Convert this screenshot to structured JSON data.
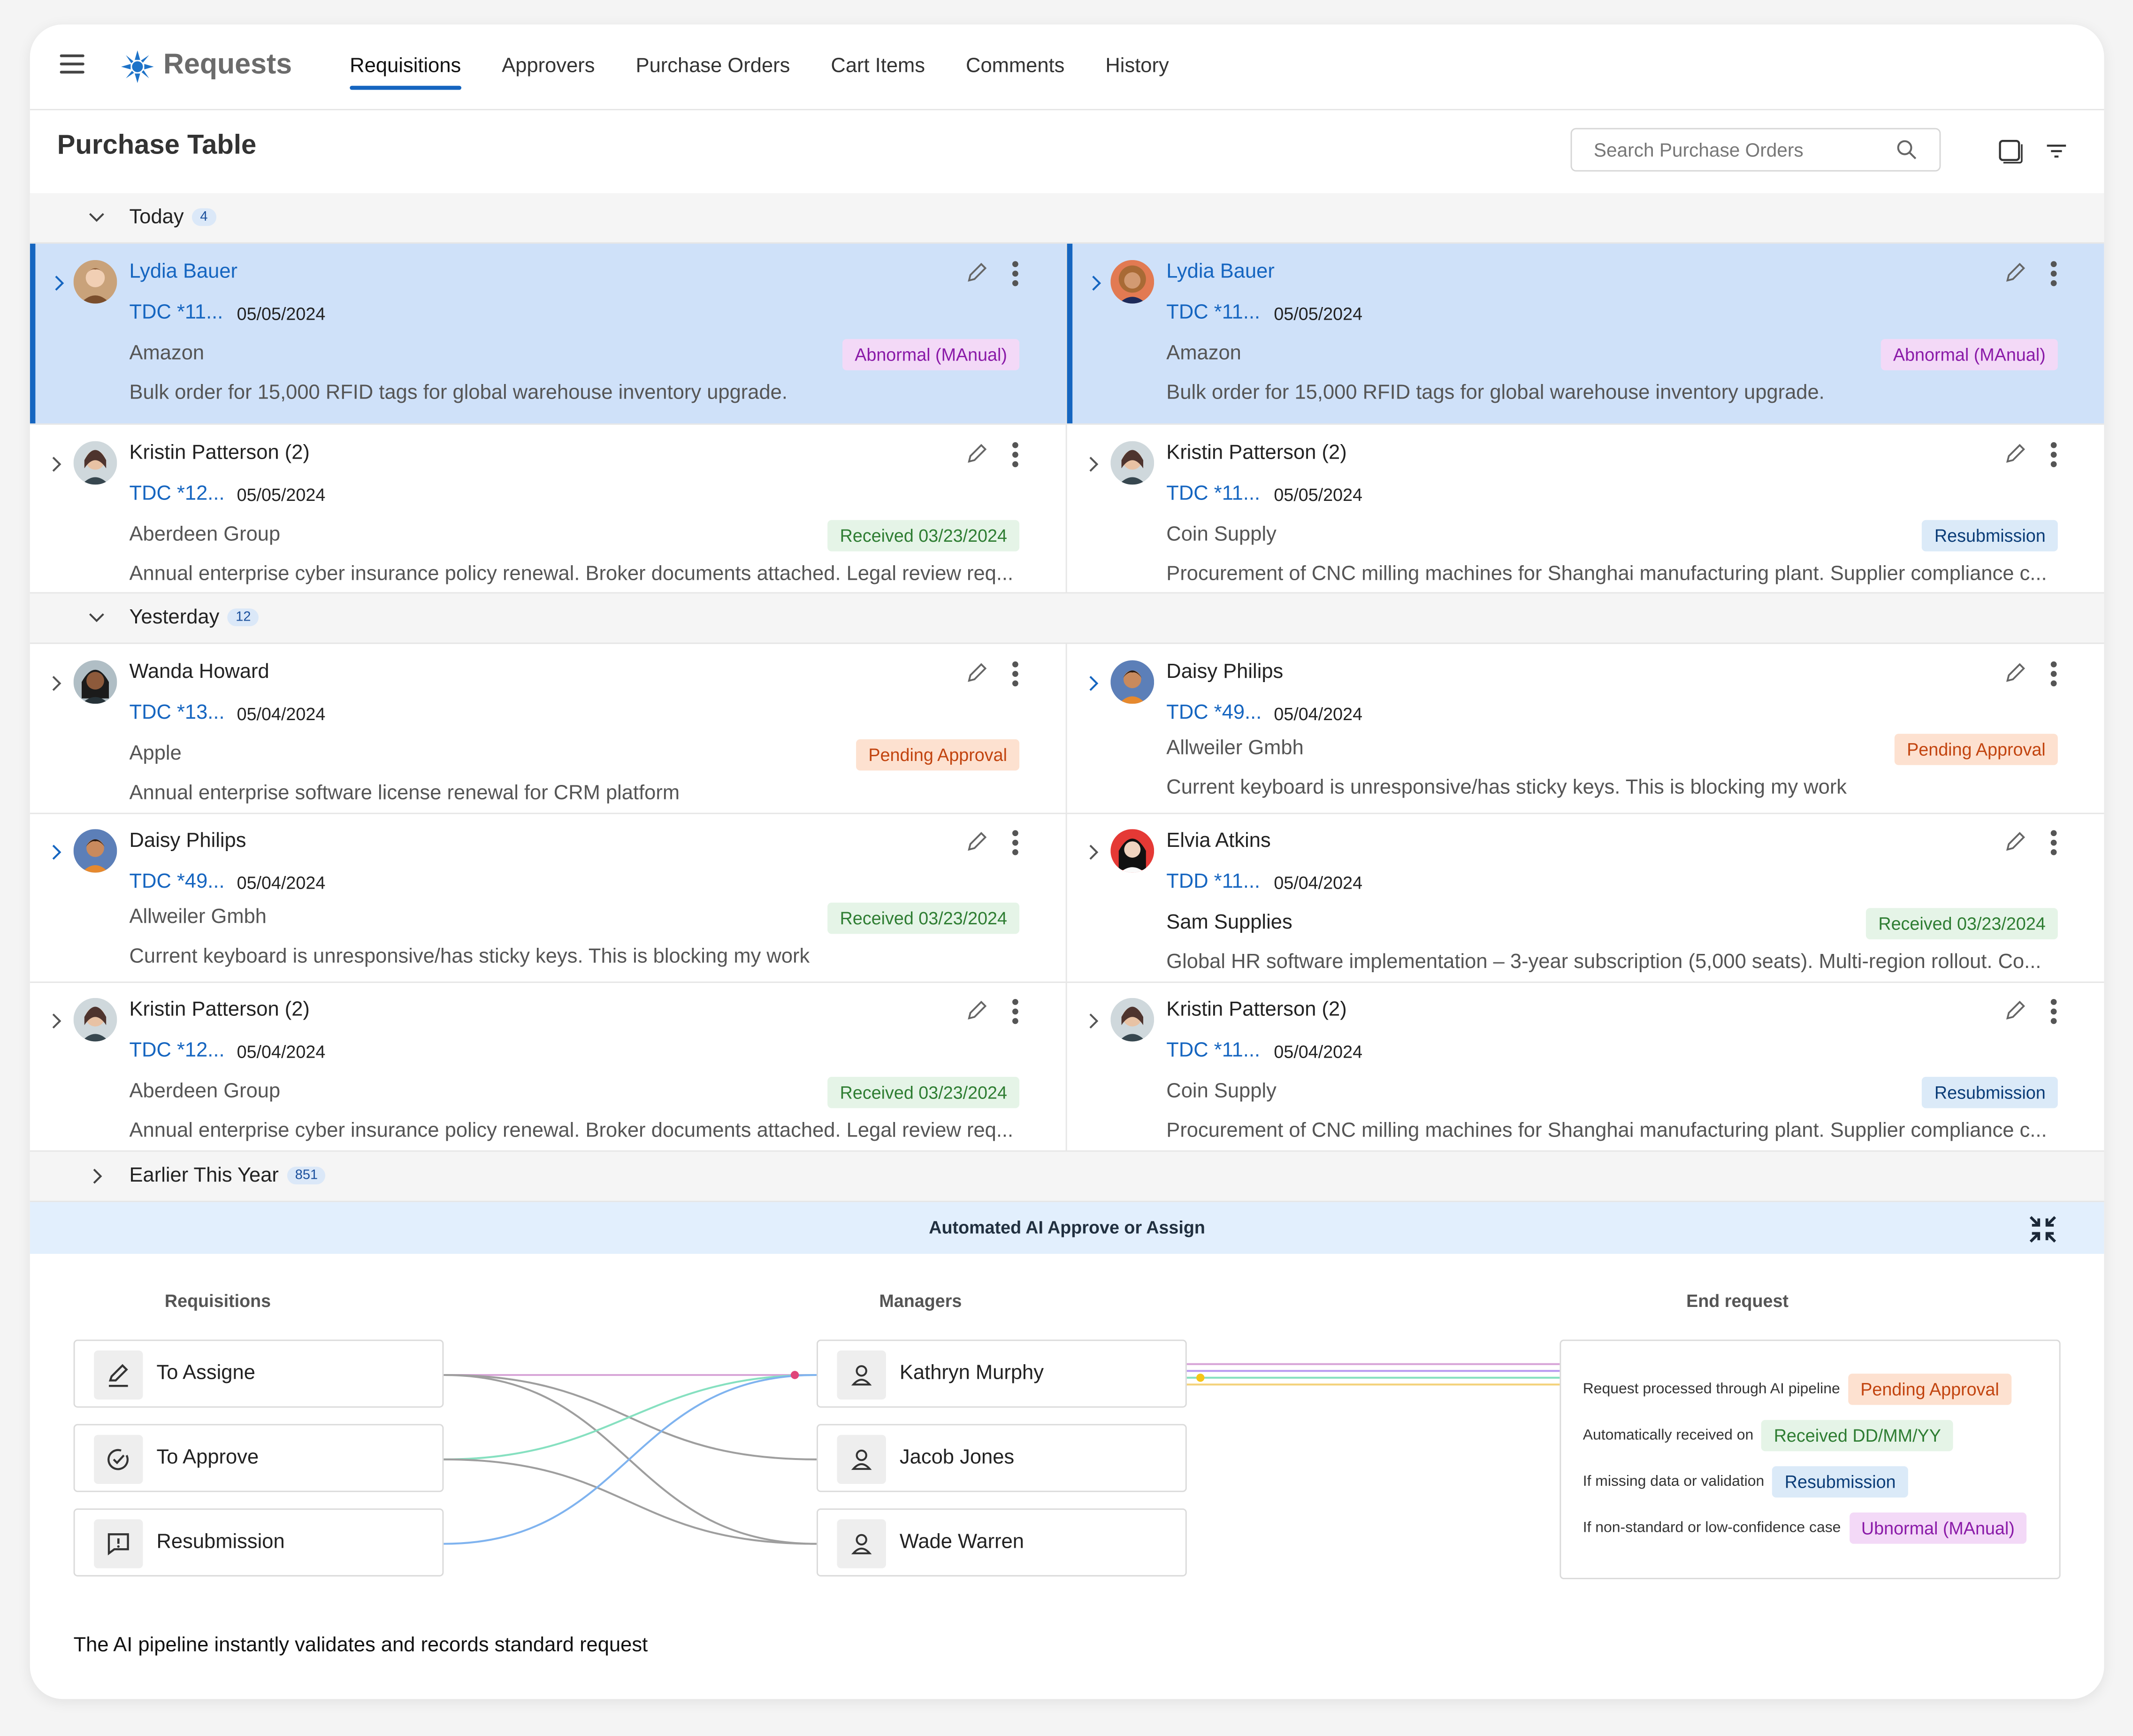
{
  "app": {
    "brand": "Requests"
  },
  "tabs": [
    "Requisitions",
    "Approvers",
    "Purchase Orders",
    "Cart Items",
    "Comments",
    "History"
  ],
  "header": {
    "title": "Purchase Table",
    "search_placeholder": "Search Purchase Orders"
  },
  "groups": {
    "today": {
      "label": "Today",
      "count": "4"
    },
    "yesterday": {
      "label": "Yesterday",
      "count": "12"
    },
    "earlier": {
      "label": "Earlier This Year",
      "count": "851"
    }
  },
  "rows": [
    [
      {
        "name": "Lydia Bauer",
        "code": "TDC *11...",
        "date": "05/05/2024",
        "vendor": "Amazon",
        "badge": "Abnormal (MAnual)",
        "desc": "Bulk order for 15,000 RFID tags for global warehouse inventory upgrade."
      },
      {
        "name": "Lydia Bauer",
        "code": "TDC *11...",
        "date": "05/05/2024",
        "vendor": "Amazon",
        "badge": "Abnormal (MAnual)",
        "desc": "Bulk order for 15,000 RFID tags for global warehouse inventory upgrade."
      }
    ],
    [
      {
        "name": "Kristin Patterson (2)",
        "code": "TDC *12...",
        "date": "05/05/2024",
        "vendor": "Aberdeen Group",
        "badge": "Received 03/23/2024",
        "desc": "Annual enterprise cyber insurance policy renewal. Broker documents attached. Legal review req..."
      },
      {
        "name": "Kristin Patterson (2)",
        "code": "TDC *11...",
        "date": "05/05/2024",
        "vendor": "Coin Supply",
        "badge": "Resubmission",
        "desc": "Procurement of CNC milling machines for Shanghai manufacturing plant. Supplier compliance c..."
      }
    ],
    [
      {
        "name": "Wanda Howard",
        "code": "TDC *13...",
        "date": "05/04/2024",
        "vendor": "Apple",
        "badge": "Pending Approval",
        "desc": "Annual enterprise software license renewal for CRM platform"
      },
      {
        "name": "Daisy Philips",
        "code": "TDC *49...",
        "date": "05/04/2024",
        "vendor": "Allweiler Gmbh",
        "badge": "Pending Approval",
        "desc": "Current keyboard is unresponsive/has sticky keys. This is blocking my work"
      }
    ],
    [
      {
        "name": "Daisy Philips",
        "code": "TDC *49...",
        "date": "05/04/2024",
        "vendor": "Allweiler Gmbh",
        "badge": "Received 03/23/2024",
        "desc": "Current keyboard is unresponsive/has sticky keys. This is blocking my work"
      },
      {
        "name": "Elvia Atkins",
        "code": "TDD *11...",
        "date": "05/04/2024",
        "vendor": "Sam Supplies",
        "badge": "Received 03/23/2024",
        "desc": "Global HR software implementation – 3-year subscription (5,000 seats). Multi-region rollout. Co..."
      }
    ],
    [
      {
        "name": "Kristin Patterson (2)",
        "code": "TDC *12...",
        "date": "05/04/2024",
        "vendor": "Aberdeen Group",
        "badge": "Received 03/23/2024",
        "desc": "Annual enterprise cyber insurance policy renewal. Broker documents attached. Legal review req..."
      },
      {
        "name": "Kristin Patterson (2)",
        "code": "TDC *11...",
        "date": "05/04/2024",
        "vendor": "Coin Supply",
        "badge": "Resubmission",
        "desc": "Procurement of CNC milling machines for Shanghai manufacturing plant. Supplier compliance c..."
      }
    ]
  ],
  "automation": {
    "title": "Automated AI Approve or Assign",
    "col_requisitions": "Requisitions",
    "col_managers": "Managers",
    "col_end": "End request",
    "requisitions": [
      "To Assigne",
      "To Approve",
      "Resubmission"
    ],
    "managers": [
      "Kathryn Murphy",
      "Jacob Jones",
      "Wade Warren"
    ],
    "end_rows": [
      {
        "text": "Request processed through AI pipeline",
        "badge": "Pending Approval"
      },
      {
        "text": "Automatically received on",
        "badge": "Received DD/MM/YY"
      },
      {
        "text": "If missing data or validation",
        "badge": "Resubmission"
      },
      {
        "text": "If non-standard or low-confidence case",
        "badge": "Ubnormal (MAnual)"
      }
    ],
    "footer": "The AI pipeline instantly validates and records standard request"
  },
  "colors": {
    "accent": "#1565c0",
    "selected_row": "#cfe1f9",
    "abnormal": "#8a1aa8",
    "received": "#2e7d32",
    "resubmission": "#0b3d78",
    "pending": "#c2440f"
  }
}
